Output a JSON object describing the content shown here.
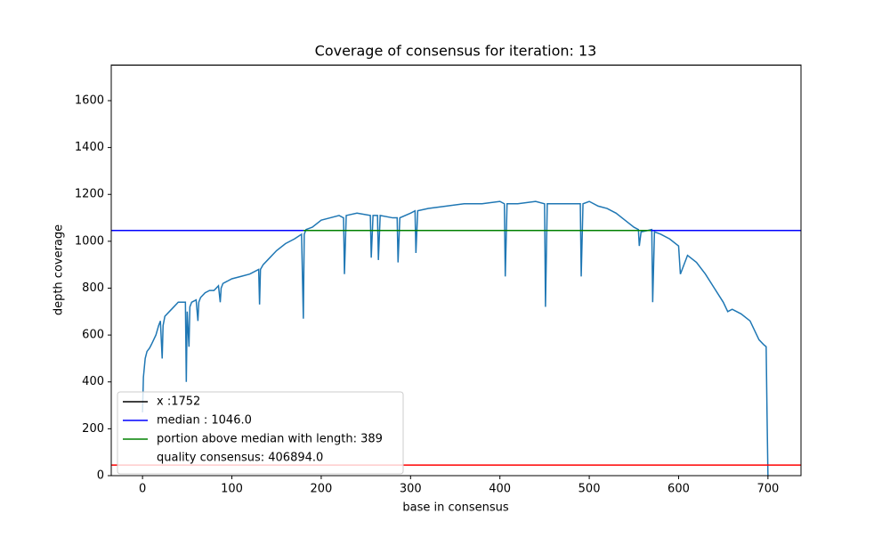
{
  "chart_data": {
    "type": "line",
    "title": "Coverage of consensus for iteration: 13",
    "xlabel": "base in consensus",
    "ylabel": "depth coverage",
    "xlim": [
      -35,
      737
    ],
    "ylim": [
      0,
      1752
    ],
    "xticks": [
      0,
      100,
      200,
      300,
      400,
      500,
      600,
      700
    ],
    "yticks": [
      0,
      200,
      400,
      600,
      800,
      1000,
      1200,
      1400,
      1600
    ],
    "legend": "lower left",
    "series": [
      {
        "color": "#1f77b4",
        "x": [
          0,
          1,
          2,
          3,
          5,
          8,
          10,
          15,
          18,
          20,
          22,
          23,
          25,
          30,
          35,
          40,
          45,
          48,
          49,
          50,
          52,
          53,
          55,
          60,
          62,
          63,
          65,
          70,
          75,
          80,
          85,
          87,
          88,
          90,
          95,
          100,
          110,
          120,
          130,
          131,
          132,
          135,
          140,
          150,
          160,
          170,
          178,
          180,
          181,
          183,
          190,
          200,
          210,
          220,
          225,
          226,
          228,
          240,
          255,
          256,
          258,
          263,
          264,
          266,
          280,
          285,
          286,
          288,
          300,
          305,
          306,
          308,
          320,
          340,
          360,
          380,
          400,
          405,
          406,
          408,
          420,
          440,
          450,
          451,
          453,
          470,
          490,
          491,
          493,
          500,
          510,
          520,
          530,
          540,
          550,
          555,
          556,
          558,
          570,
          571,
          573,
          580,
          590,
          600,
          602,
          610,
          620,
          630,
          640,
          650,
          655,
          660,
          670,
          680,
          690,
          695,
          698,
          699,
          700
        ],
        "values": [
          270,
          420,
          460,
          500,
          530,
          545,
          560,
          600,
          640,
          660,
          500,
          640,
          680,
          700,
          720,
          740,
          740,
          740,
          400,
          700,
          550,
          720,
          740,
          750,
          660,
          740,
          760,
          780,
          790,
          790,
          810,
          740,
          800,
          820,
          830,
          840,
          850,
          860,
          880,
          730,
          880,
          900,
          920,
          960,
          990,
          1010,
          1030,
          670,
          1030,
          1050,
          1060,
          1090,
          1100,
          1110,
          1100,
          860,
          1110,
          1120,
          1110,
          930,
          1110,
          1110,
          920,
          1110,
          1100,
          1100,
          910,
          1100,
          1120,
          1130,
          950,
          1130,
          1140,
          1150,
          1160,
          1160,
          1170,
          1160,
          850,
          1160,
          1160,
          1170,
          1160,
          720,
          1160,
          1160,
          1160,
          850,
          1160,
          1170,
          1150,
          1140,
          1120,
          1090,
          1060,
          1050,
          980,
          1040,
          1050,
          740,
          1040,
          1030,
          1010,
          980,
          860,
          940,
          910,
          860,
          800,
          740,
          700,
          710,
          690,
          660,
          580,
          560,
          550,
          260,
          0
        ]
      }
    ],
    "hlines": [
      {
        "value": 1752,
        "color": "black",
        "label": "x :1752"
      },
      {
        "value": 1046,
        "color": "blue",
        "label": "median : 1046.0"
      },
      {
        "value": 1046,
        "color": "green",
        "xrange": [
          180,
          569
        ],
        "label": "portion above median with length: 389"
      },
      {
        "value": 406894,
        "color": "white",
        "label": "quality consensus: 406894.0"
      },
      {
        "value": 45,
        "color": "red"
      }
    ]
  }
}
